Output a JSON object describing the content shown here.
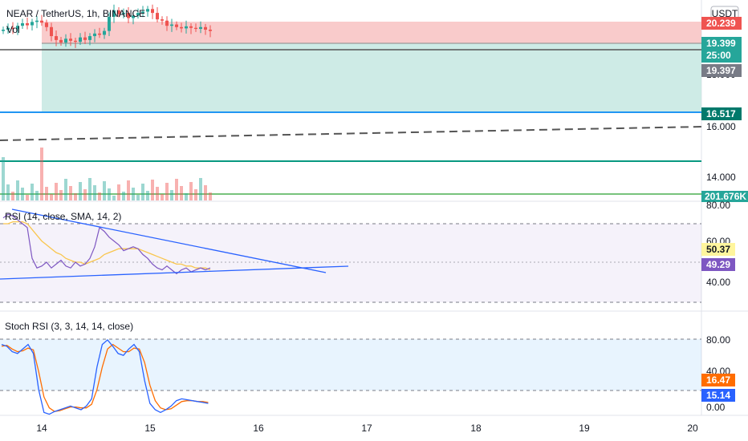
{
  "header": {
    "symbol_title": "NEAR / TetherUS, 1h, BINANCE",
    "volume_label": "Vol",
    "currency_button": "USDT"
  },
  "colors": {
    "up": "#26a69a",
    "down": "#ef5350",
    "rsi_line": "#7e57c2",
    "rsi_ma": "#f9c64e",
    "stoch_k": "#2962ff",
    "stoch_d": "#ff6d00"
  },
  "chart_data": [
    {
      "type": "candlestick",
      "pane": "price",
      "title": "NEAR / TetherUS, 1h, BINANCE",
      "x_ticks": [
        "14",
        "15",
        "16",
        "17",
        "18",
        "19",
        "20"
      ],
      "y_ticks": [
        "18.000",
        "16.000",
        "14.000"
      ],
      "ylim": [
        12.8,
        20.6
      ],
      "series": [
        {
          "name": "NEAR / TetherUS",
          "close_approx": [
            19.45,
            19.52,
            19.48,
            19.6,
            19.7,
            19.62,
            19.75,
            19.8,
            19.72,
            19.55,
            19.2,
            19.05,
            18.95,
            19.1,
            19.02,
            18.98,
            19.15,
            19.05,
            19.2,
            19.3,
            19.25,
            19.4,
            19.95,
            20.2,
            20.05,
            20.1,
            19.9,
            20.0,
            20.1,
            20.15,
            20.25,
            20.1,
            19.85,
            19.8,
            19.6,
            19.65,
            19.55,
            19.5,
            19.58,
            19.52,
            19.48,
            19.55,
            19.45,
            19.4
          ]
        }
      ],
      "drawings": {
        "long_position": {
          "entry": 19.397,
          "target": 20.239,
          "stop": 16.517
        },
        "horizontal_line": 16.517,
        "trend_line_dashed": true
      },
      "price_labels": [
        {
          "value": "20.239",
          "kind": "target"
        },
        {
          "value": "19.399",
          "kind": "last"
        },
        {
          "value": "25:00",
          "kind": "countdown"
        },
        {
          "value": "19.397",
          "kind": "entry"
        },
        {
          "value": "16.517",
          "kind": "stop"
        }
      ]
    },
    {
      "type": "bar",
      "pane": "volume",
      "title": "Vol",
      "label_value": "201.676K"
    },
    {
      "type": "line",
      "pane": "rsi",
      "title": "RSI (14, close, SMA, 14, 2)",
      "ylim": [
        20,
        80
      ],
      "y_ticks": [
        "80.00",
        "60.00",
        "40.00"
      ],
      "levels": [
        70,
        50,
        30
      ],
      "series": [
        {
          "name": "RSI",
          "y": [
            73,
            75,
            74,
            72,
            70,
            68,
            52,
            47,
            48,
            50,
            47,
            49,
            51,
            48,
            47,
            50,
            48,
            49,
            52,
            58,
            68,
            66,
            63,
            61,
            59,
            56,
            57,
            58,
            57,
            54,
            52,
            49,
            47,
            46,
            48,
            46,
            44,
            46,
            47,
            45,
            46,
            47,
            46,
            47
          ]
        },
        {
          "name": "RSI-based MA",
          "y": [
            70,
            70,
            71,
            71,
            71,
            70,
            67,
            64,
            61,
            59,
            57,
            55,
            54,
            52,
            51,
            50,
            50,
            49,
            50,
            51,
            52,
            54,
            55,
            56,
            57,
            57,
            57,
            57,
            57,
            56,
            55,
            54,
            53,
            52,
            51,
            50,
            49,
            49,
            48,
            48,
            47,
            47,
            47,
            46
          ]
        }
      ],
      "value_labels": [
        "50.37",
        "49.29"
      ]
    },
    {
      "type": "line",
      "pane": "stoch_rsi",
      "title": "Stoch RSI (3, 3, 14, 14, close)",
      "ylim": [
        0,
        100
      ],
      "y_ticks": [
        "80.00",
        "40.00",
        "0.00"
      ],
      "levels": [
        80,
        20
      ],
      "series": [
        {
          "name": "K",
          "y": [
            80,
            78,
            72,
            70,
            75,
            80,
            70,
            30,
            5,
            3,
            6,
            8,
            10,
            12,
            10,
            8,
            12,
            20,
            55,
            80,
            85,
            78,
            70,
            68,
            75,
            80,
            72,
            40,
            15,
            8,
            5,
            8,
            12,
            18,
            20,
            19,
            18,
            17,
            16,
            15
          ]
        },
        {
          "name": "D",
          "y": [
            78,
            79,
            75,
            72,
            73,
            76,
            74,
            50,
            22,
            10,
            6,
            7,
            9,
            11,
            11,
            10,
            10,
            14,
            30,
            55,
            75,
            80,
            76,
            72,
            72,
            76,
            75,
            60,
            35,
            18,
            10,
            8,
            9,
            13,
            17,
            18,
            18,
            17,
            17,
            16
          ]
        }
      ],
      "value_labels": [
        "16.47",
        "15.14"
      ]
    }
  ]
}
